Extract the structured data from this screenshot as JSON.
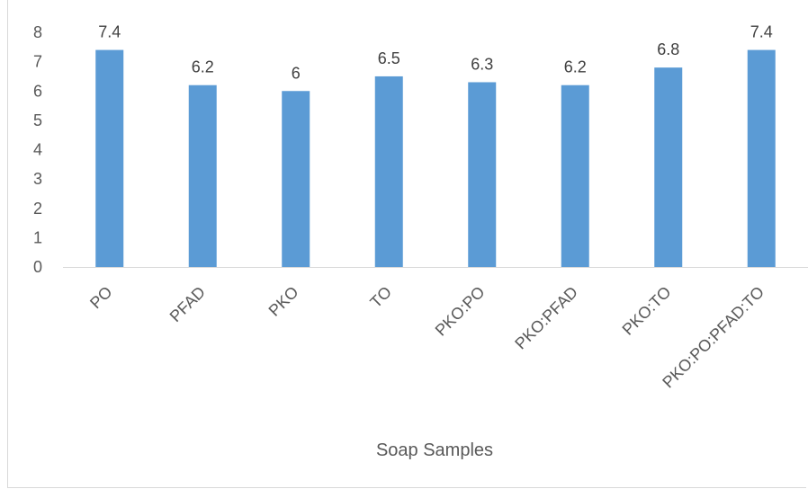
{
  "chart_data": {
    "type": "bar",
    "title": "",
    "xlabel": "Soap Samples",
    "ylabel": "",
    "ylim": [
      0,
      8
    ],
    "yticks": [
      0,
      1,
      2,
      3,
      4,
      5,
      6,
      7,
      8
    ],
    "grid": false,
    "legend": "none",
    "categories": [
      "PO",
      "PFAD",
      "PKO",
      "TO",
      "PKO:PO",
      "PKO:PFAD",
      "PKO:TO",
      "PKO:PO:PFAD:TO"
    ],
    "values": [
      7.4,
      6.2,
      6,
      6.5,
      6.3,
      6.2,
      6.8,
      7.4
    ],
    "data_labels": [
      "7.4",
      "6.2",
      "6",
      "6.5",
      "6.3",
      "6.2",
      "6.8",
      "7.4"
    ],
    "colors": {
      "bar": "#5b9bd5",
      "axis": "#d9d9d9",
      "text": "#595959"
    }
  }
}
